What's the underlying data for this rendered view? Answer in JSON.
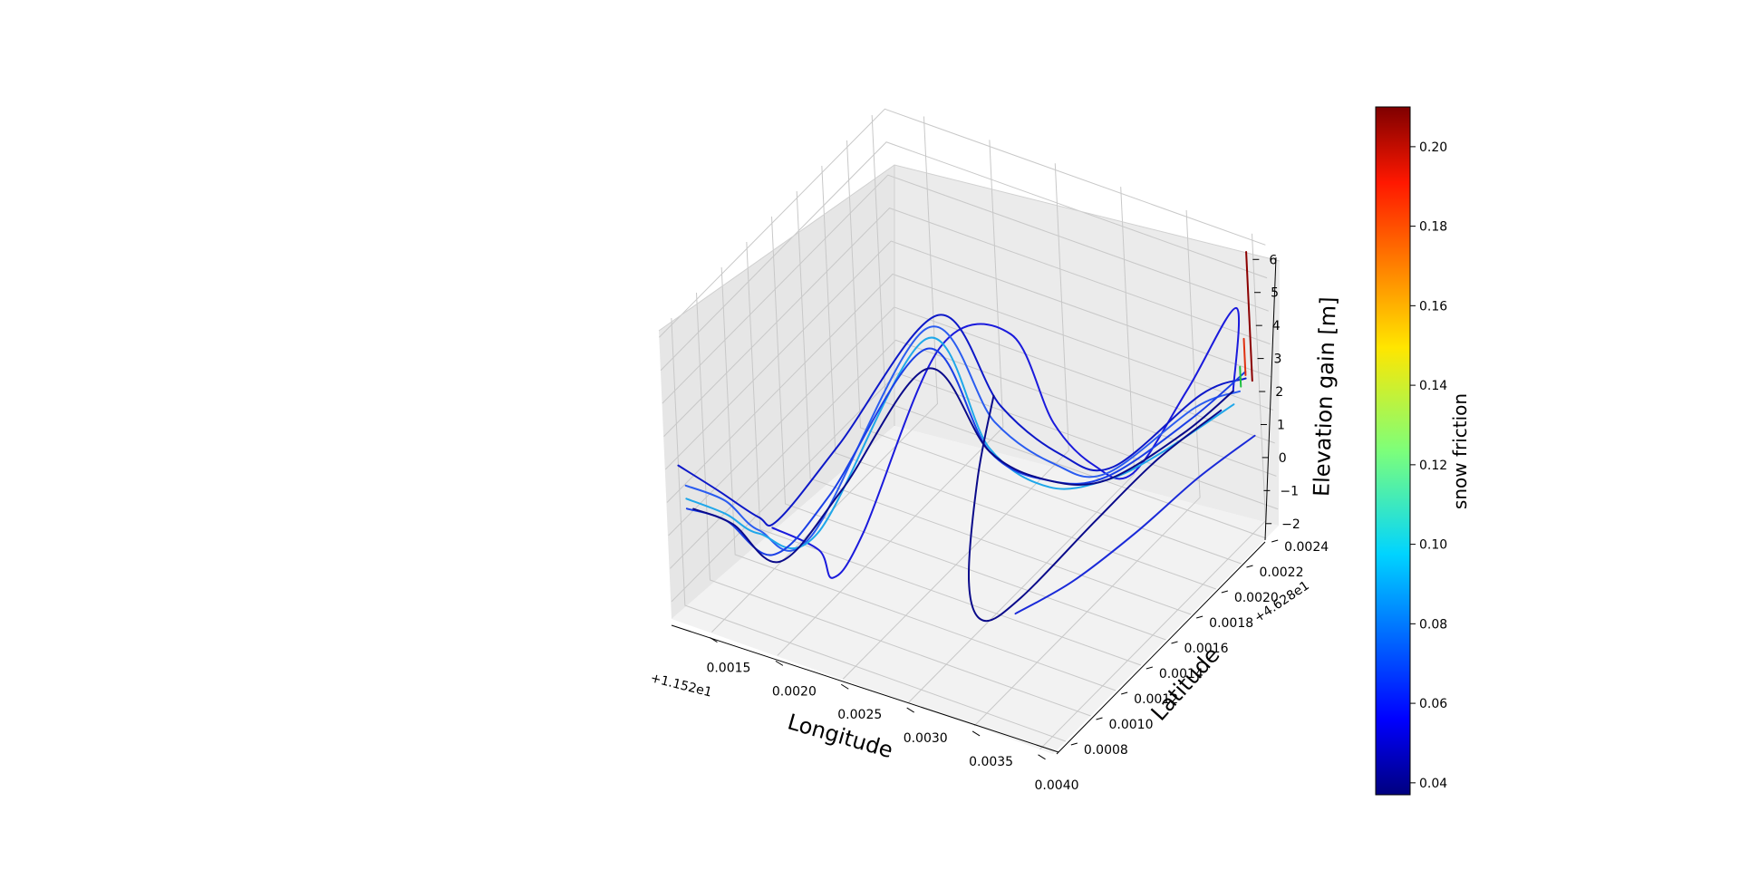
{
  "chart_data": {
    "type": "line",
    "projection": "3d",
    "xlabel": "Longitude",
    "ylabel": "Latitude",
    "zlabel": "Elevation gain [m]",
    "x_offset_label": "+1.152e1",
    "y_offset_label": "+4.628e1",
    "x_ticks": [
      "0.0015",
      "0.0020",
      "0.0025",
      "0.0030",
      "0.0035",
      "0.0040"
    ],
    "y_ticks": [
      "0.0008",
      "0.0010",
      "0.0012",
      "0.0014",
      "0.0016",
      "0.0018",
      "0.0020",
      "0.0022",
      "0.0024"
    ],
    "z_ticks": [
      "−2",
      "−1",
      "0",
      "1",
      "2",
      "3",
      "4",
      "5",
      "6"
    ],
    "xlim": [
      0.0012,
      0.0041
    ],
    "ylim": [
      0.0007,
      0.0025
    ],
    "zlim": [
      -2.5,
      6.2
    ],
    "grid": true,
    "colorbar": {
      "label": "snow friction",
      "colormap": "jet",
      "range": [
        0.037,
        0.21
      ],
      "ticks": [
        "0.04",
        "0.06",
        "0.08",
        "0.10",
        "0.12",
        "0.14",
        "0.16",
        "0.18",
        "0.20"
      ]
    },
    "series": [
      {
        "color": "#1a1adc",
        "points": [
          [
            0.00155,
            0.00115,
            -1.0
          ],
          [
            0.0018,
            0.00125,
            -1.7
          ],
          [
            0.0019,
            0.00125,
            -2.4
          ],
          [
            0.00205,
            0.00135,
            -1.2
          ],
          [
            0.0023,
            0.00175,
            3.2
          ],
          [
            0.00245,
            0.00215,
            2.3
          ],
          [
            0.0028,
            0.0021,
            0.3
          ],
          [
            0.0033,
            0.0019,
            0.5
          ],
          [
            0.0037,
            0.0018,
            1.2
          ],
          [
            0.00385,
            0.0021,
            2.8
          ],
          [
            0.0039,
            0.00245,
            4.0
          ],
          [
            0.004,
            0.0023,
            2.2
          ]
        ]
      },
      {
        "color": "#0d18c8",
        "points": [
          [
            0.00125,
            0.00075,
            2.0
          ],
          [
            0.0015,
            0.0008,
            1.4
          ],
          [
            0.0017,
            0.0009,
            0.5
          ],
          [
            0.00175,
            0.001,
            0.1
          ],
          [
            0.002,
            0.00125,
            1.8
          ],
          [
            0.0023,
            0.00175,
            4.2
          ],
          [
            0.0026,
            0.0019,
            1.3
          ],
          [
            0.003,
            0.00195,
            0.2
          ],
          [
            0.0034,
            0.00195,
            0.4
          ],
          [
            0.0038,
            0.00225,
            2.0
          ],
          [
            0.004,
            0.0024,
            2.2
          ]
        ]
      },
      {
        "color": "#2a5cf0",
        "points": [
          [
            0.00125,
            0.0008,
            1.2
          ],
          [
            0.0015,
            0.00085,
            0.9
          ],
          [
            0.0017,
            0.0009,
            0.1
          ],
          [
            0.00195,
            0.00105,
            -0.3
          ],
          [
            0.00225,
            0.0017,
            3.9
          ],
          [
            0.0026,
            0.00185,
            1.0
          ],
          [
            0.003,
            0.0019,
            0.1
          ],
          [
            0.0034,
            0.0019,
            0.4
          ],
          [
            0.0038,
            0.0022,
            1.8
          ],
          [
            0.004,
            0.00235,
            2.0
          ]
        ]
      },
      {
        "color": "#1fa7ea",
        "points": [
          [
            0.00125,
            0.0008,
            0.8
          ],
          [
            0.0015,
            0.00085,
            0.5
          ],
          [
            0.0017,
            0.0009,
            0.0
          ],
          [
            0.00195,
            0.0011,
            -0.4
          ],
          [
            0.00225,
            0.0017,
            3.6
          ],
          [
            0.0026,
            0.0018,
            0.4
          ],
          [
            0.003,
            0.00185,
            -0.4
          ],
          [
            0.0034,
            0.0019,
            0.2
          ],
          [
            0.0037,
            0.002,
            1.0
          ],
          [
            0.004,
            0.0023,
            1.8
          ]
        ]
      },
      {
        "color": "#1a3fe6",
        "points": [
          [
            0.00125,
            0.0008,
            0.5
          ],
          [
            0.0015,
            0.00085,
            0.3
          ],
          [
            0.0018,
            0.0009,
            -0.5
          ],
          [
            0.002,
            0.00115,
            0.6
          ],
          [
            0.00225,
            0.0017,
            3.3
          ],
          [
            0.0026,
            0.0018,
            0.3
          ],
          [
            0.003,
            0.00185,
            -0.2
          ],
          [
            0.0034,
            0.0019,
            0.3
          ],
          [
            0.0038,
            0.00215,
            1.6
          ],
          [
            0.004,
            0.0024,
            2.4
          ]
        ]
      },
      {
        "color": "#0a0a8a",
        "points": [
          [
            0.00125,
            0.00085,
            0.3
          ],
          [
            0.0015,
            0.0009,
            0.0
          ],
          [
            0.0018,
            0.00095,
            -0.9
          ],
          [
            0.002,
            0.00125,
            0.4
          ],
          [
            0.00225,
            0.0017,
            2.7
          ],
          [
            0.0026,
            0.0018,
            0.3
          ],
          [
            0.003,
            0.00185,
            -0.2
          ],
          [
            0.0034,
            0.0019,
            0.2
          ],
          [
            0.0038,
            0.0021,
            1.4
          ],
          [
            0.004,
            0.0023,
            2.2
          ]
        ]
      },
      {
        "color": "#0a0a8a",
        "points": [
          [
            0.0026,
            0.00185,
            1.8
          ],
          [
            0.0027,
            0.0016,
            0.4
          ],
          [
            0.0029,
            0.0013,
            -1.3
          ],
          [
            0.0031,
            0.0012,
            -1.8
          ],
          [
            0.0033,
            0.0013,
            -1.2
          ],
          [
            0.0036,
            0.0016,
            0.4
          ],
          [
            0.0038,
            0.0019,
            1.4
          ],
          [
            0.004,
            0.0022,
            2.0
          ]
        ]
      },
      {
        "color": "#1a2ad8",
        "points": [
          [
            0.0033,
            0.00125,
            -1.5
          ],
          [
            0.0035,
            0.0015,
            -1.2
          ],
          [
            0.0037,
            0.0018,
            -0.6
          ],
          [
            0.0039,
            0.0021,
            0.2
          ],
          [
            0.0041,
            0.00235,
            0.8
          ]
        ]
      },
      {
        "color": "#8b0000",
        "points": [
          [
            0.00405,
            0.0024,
            2.2
          ],
          [
            0.00405,
            0.0024,
            6.1
          ]
        ]
      },
      {
        "color": "#e03010",
        "points": [
          [
            0.004,
            0.0024,
            2.3
          ],
          [
            0.004,
            0.0024,
            3.4
          ]
        ]
      },
      {
        "color": "#20c040",
        "points": [
          [
            0.00398,
            0.00238,
            2.0
          ],
          [
            0.00398,
            0.00238,
            2.6
          ]
        ]
      }
    ]
  }
}
